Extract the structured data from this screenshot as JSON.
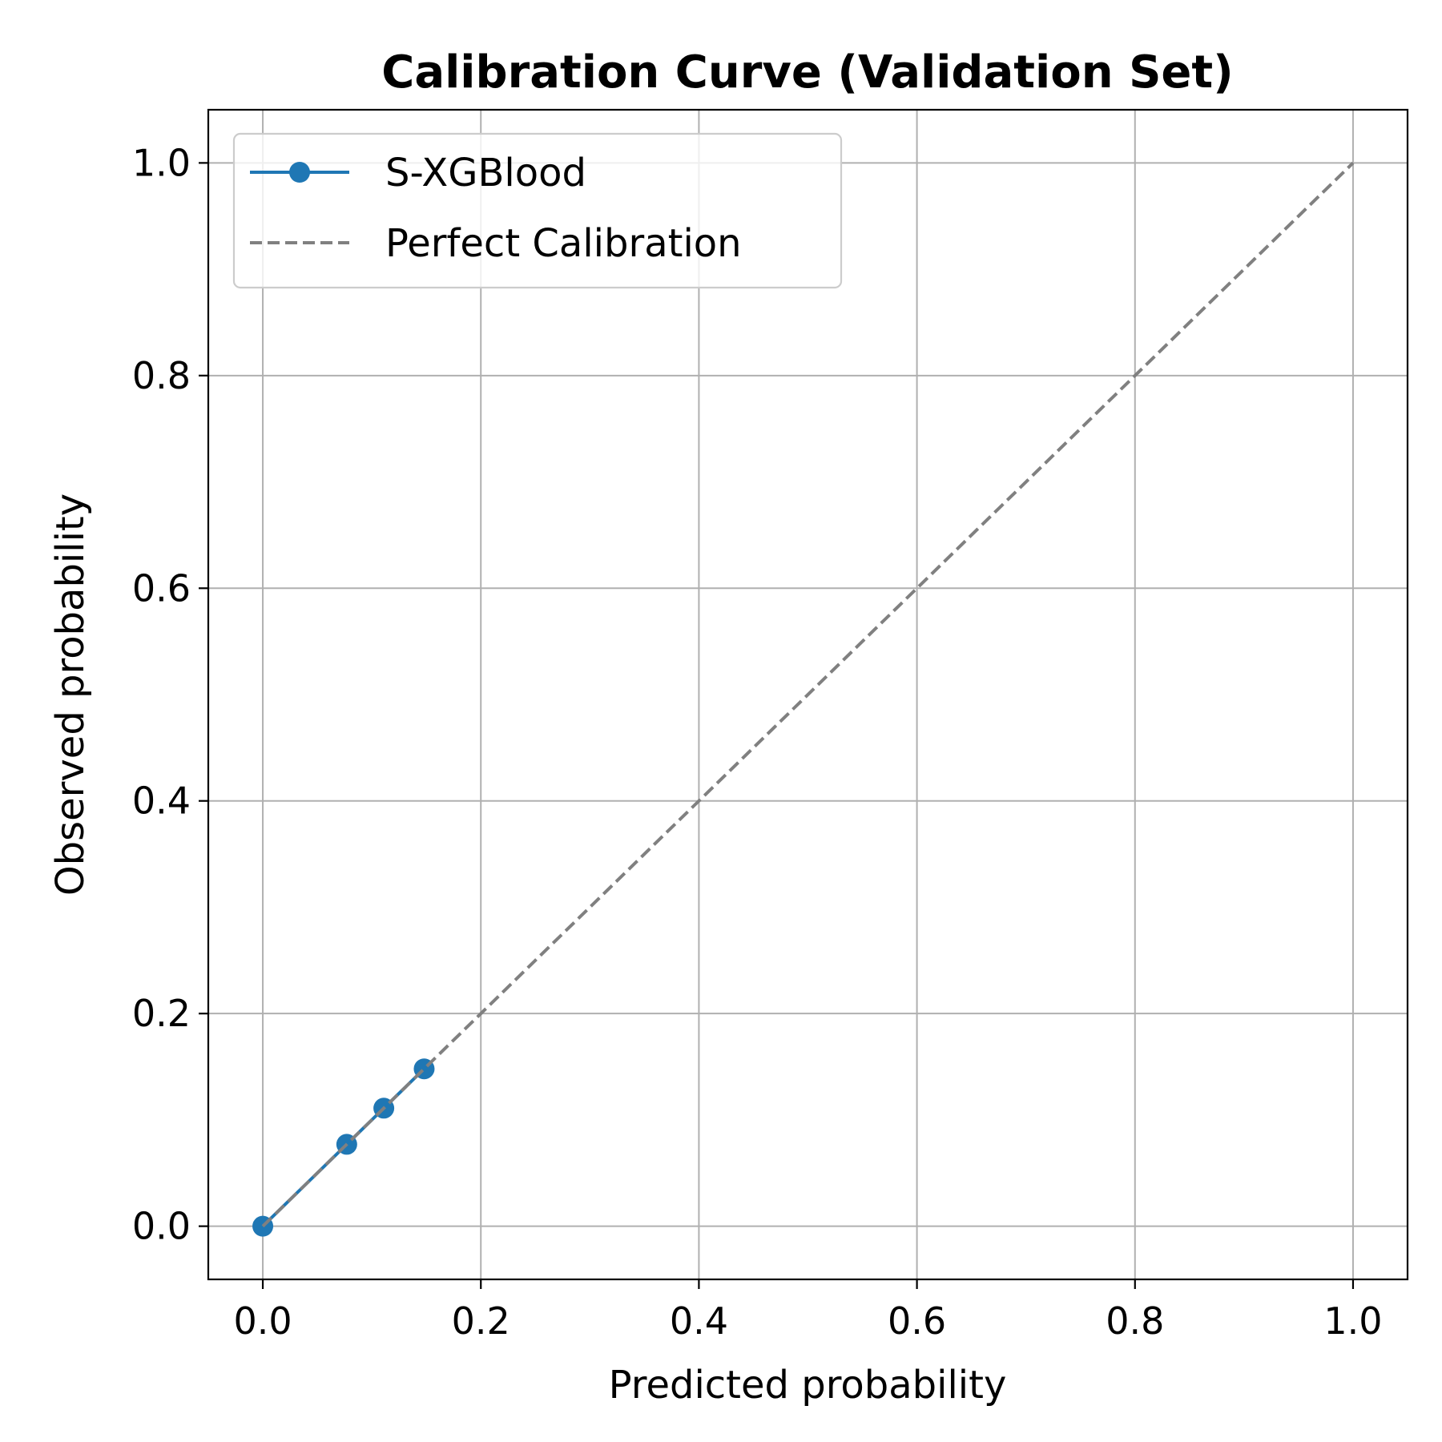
{
  "chart_data": {
    "type": "line",
    "title": "Calibration Curve (Validation Set)",
    "xlabel": "Predicted probability",
    "ylabel": "Observed probability",
    "xlim": [
      -0.05,
      1.05
    ],
    "ylim": [
      -0.05,
      1.05
    ],
    "xticks": [
      0.0,
      0.2,
      0.4,
      0.6,
      0.8,
      1.0
    ],
    "yticks": [
      0.0,
      0.2,
      0.4,
      0.6,
      0.8,
      1.0
    ],
    "xtick_labels": [
      "0.0",
      "0.2",
      "0.4",
      "0.6",
      "0.8",
      "1.0"
    ],
    "ytick_labels": [
      "0.0",
      "0.2",
      "0.4",
      "0.6",
      "0.8",
      "1.0"
    ],
    "grid": true,
    "legend_position": "top-left",
    "series": [
      {
        "name": "S-XGBlood",
        "style": "solid-with-markers",
        "color": "#1f77b4",
        "x": [
          0.0,
          0.077,
          0.111,
          0.148
        ],
        "y": [
          0.0,
          0.077,
          0.111,
          0.148
        ]
      },
      {
        "name": "Perfect Calibration",
        "style": "dashed",
        "color": "#808080",
        "x": [
          0.0,
          1.0
        ],
        "y": [
          0.0,
          1.0
        ]
      }
    ]
  }
}
